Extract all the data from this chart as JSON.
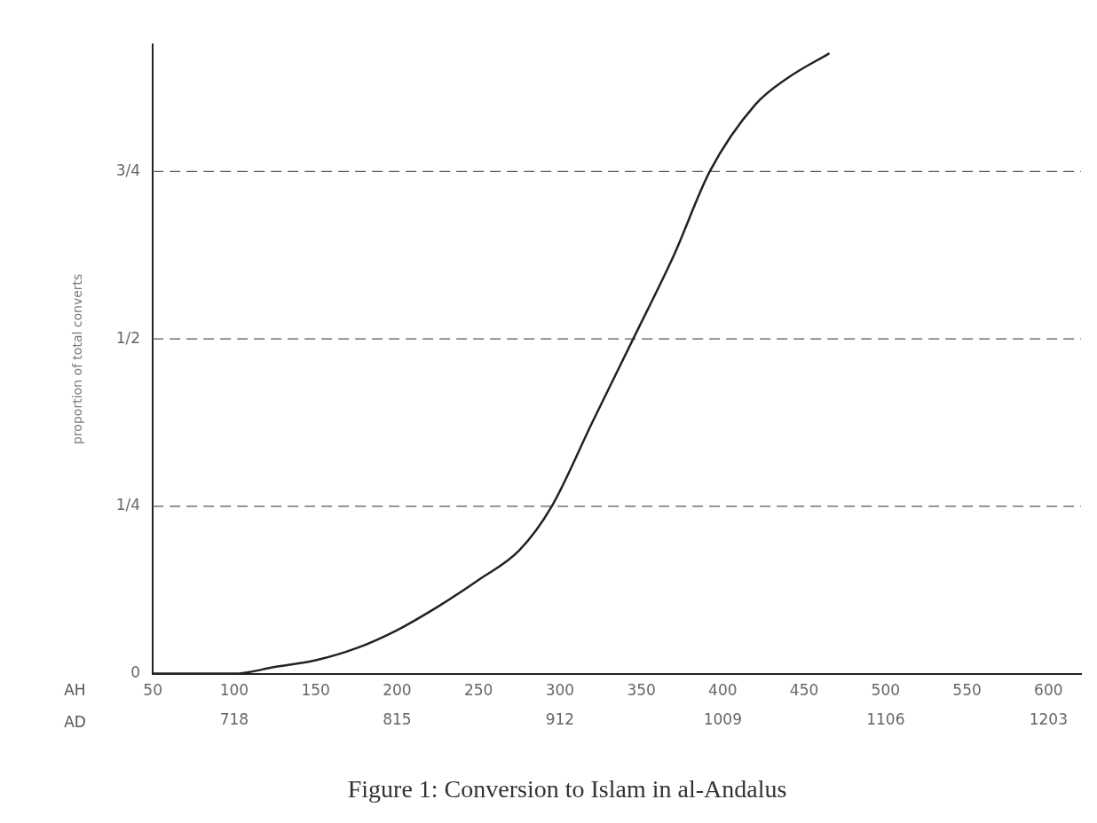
{
  "chart_data": {
    "type": "line",
    "title": "Figure 1: Conversion to Islam in al-Andalus",
    "xlabel": "AH",
    "x2label": "AD",
    "ylabel": "proportion of total converts",
    "xlim": [
      50,
      620
    ],
    "xticks": [
      50,
      100,
      150,
      200,
      250,
      300,
      350,
      400,
      450,
      500,
      550,
      600
    ],
    "x2lim": [
      669.5,
      1222.4
    ],
    "x2ticks": [
      718,
      815,
      912,
      1009,
      1106,
      1203
    ],
    "ylim": [
      0,
      0.94
    ],
    "yticks": [
      {
        "value": 0,
        "label": "0"
      },
      {
        "value": 0.25,
        "label": "1/4"
      },
      {
        "value": 0.5,
        "label": "1/2"
      },
      {
        "value": 0.75,
        "label": "3/4"
      }
    ],
    "grid": "y",
    "legend": false,
    "marker": "none",
    "line_style": "solid",
    "series": [
      {
        "color": "#222222",
        "x": [
          50,
          100,
          125,
          150,
          175,
          200,
          225,
          250,
          275,
          295,
          320,
          345,
          370,
          392,
          420,
          440,
          465
        ],
        "values": [
          0,
          0,
          0.01,
          0.02,
          0.038,
          0.065,
          0.1,
          0.14,
          0.184,
          0.25,
          0.376,
          0.5,
          0.625,
          0.75,
          0.85,
          0.89,
          0.926
        ]
      }
    ]
  }
}
